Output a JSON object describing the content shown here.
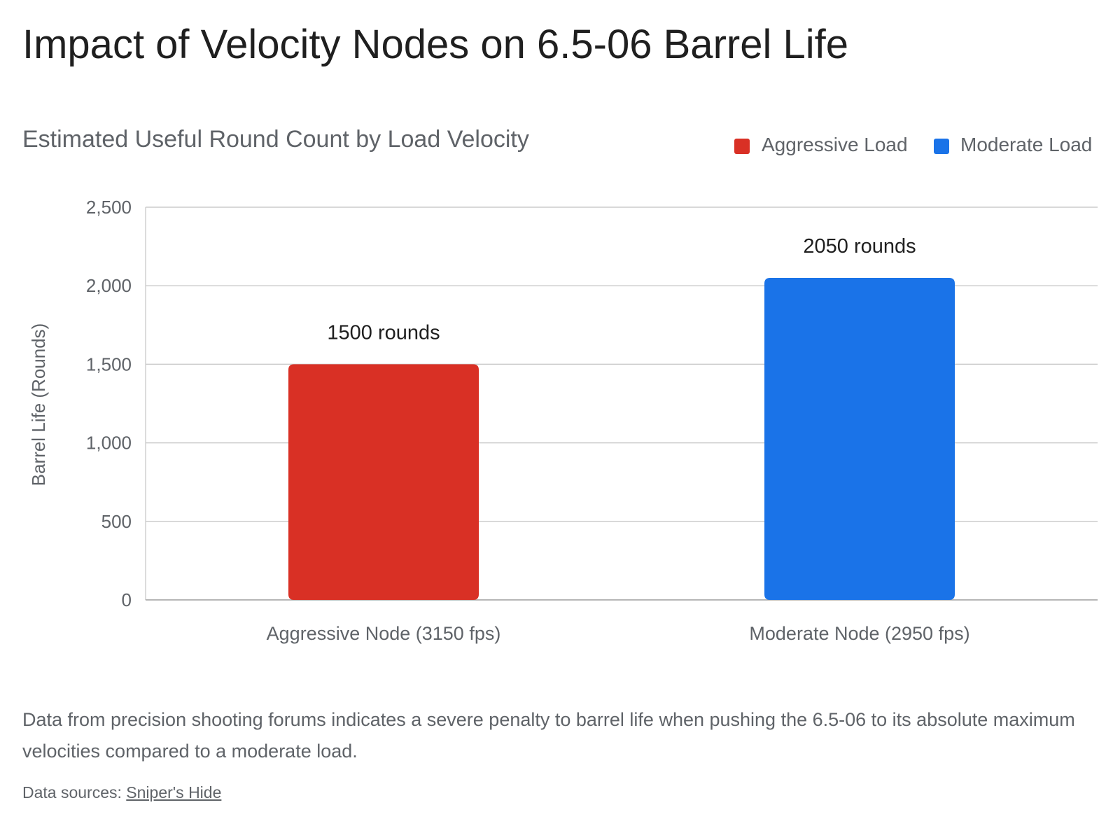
{
  "title": "Impact of Velocity Nodes on 6.5-06 Barrel Life",
  "description": "Data from precision shooting forums indicates a severe penalty to barrel life when pushing the 6.5-06 to its absolute maximum velocities compared to a moderate load.",
  "sources": {
    "label": "Data sources:",
    "link_text": "Sniper's Hide"
  },
  "chart_data": {
    "type": "bar",
    "title": "Estimated Useful Round Count by Load Velocity",
    "xlabel": "",
    "ylabel": "Barrel Life (Rounds)",
    "ylim": [
      0,
      2500
    ],
    "yticks": [
      0,
      500,
      1000,
      1500,
      2000,
      2500
    ],
    "ytick_labels": [
      "0",
      "500",
      "1,000",
      "1,500",
      "2,000",
      "2,500"
    ],
    "grid": true,
    "legend": "top-right",
    "categories": [
      "Aggressive Node (3150 fps)",
      "Moderate Node (2950 fps)"
    ],
    "series": [
      {
        "name": "Aggressive Load",
        "color": "#d93025",
        "values": [
          1500,
          null
        ],
        "data_labels": [
          "1500 rounds",
          null
        ]
      },
      {
        "name": "Moderate Load",
        "color": "#1a73e8",
        "values": [
          null,
          2050
        ],
        "data_labels": [
          null,
          "2050 rounds"
        ]
      }
    ]
  }
}
